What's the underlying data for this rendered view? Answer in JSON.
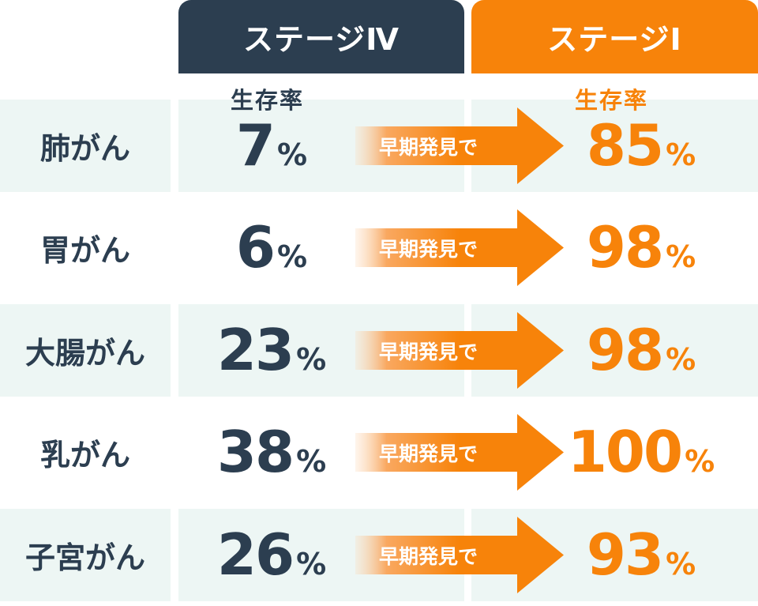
{
  "headers": {
    "stage4": "ステージⅣ",
    "stage1": "ステージⅠ",
    "survival_label_stage4": "生存率",
    "survival_label_stage1": "生存率"
  },
  "arrow_label": "早期発見で",
  "unit": "%",
  "colors": {
    "stage4": "#2c3e50",
    "stage1": "#f7830a",
    "row_shade": "#edf6f4"
  },
  "chart_data": {
    "type": "table",
    "columns": [
      "ステージⅣ 生存率",
      "ステージⅠ 生存率"
    ],
    "rows": [
      {
        "name": "肺がん",
        "stage4": "7",
        "stage1": "85"
      },
      {
        "name": "胃がん",
        "stage4": "6",
        "stage1": "98"
      },
      {
        "name": "大腸がん",
        "stage4": "23",
        "stage1": "98"
      },
      {
        "name": "乳がん",
        "stage4": "38",
        "stage1": "100"
      },
      {
        "name": "子宮がん",
        "stage4": "26",
        "stage1": "93"
      }
    ]
  }
}
